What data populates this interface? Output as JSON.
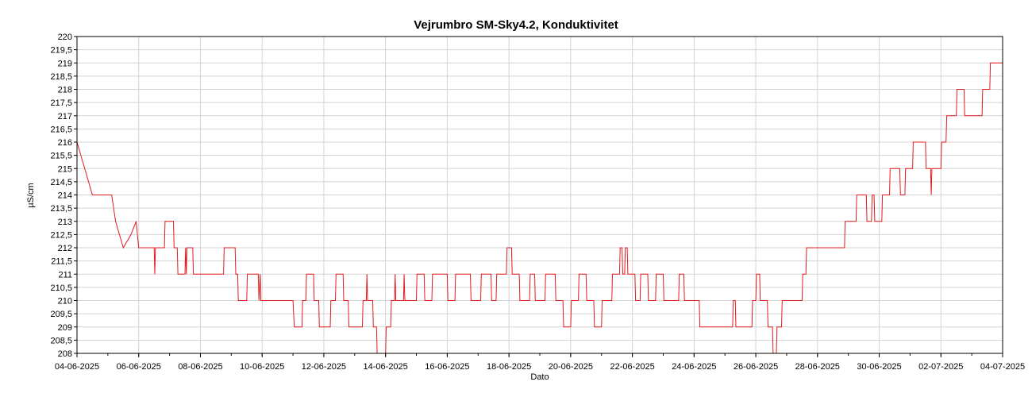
{
  "chart_data": {
    "type": "line",
    "title": "Vejrumbro SM-Sky4.2, Konduktivitet",
    "xlabel": "Dato",
    "ylabel": "µS/cm",
    "ylim": [
      208,
      220
    ],
    "xlim": [
      "04-06-2025",
      "04-07-2025"
    ],
    "grid": true,
    "x_tick_labels": [
      "04-06-2025",
      "06-06-2025",
      "08-06-2025",
      "10-06-2025",
      "12-06-2025",
      "14-06-2025",
      "16-06-2025",
      "18-06-2025",
      "20-06-2025",
      "22-06-2025",
      "24-06-2025",
      "26-06-2025",
      "28-06-2025",
      "30-06-2025",
      "02-07-2025",
      "04-07-2025"
    ],
    "y_tick_labels": [
      "208",
      "208,5",
      "209",
      "209,5",
      "210",
      "210,5",
      "211",
      "211,5",
      "212",
      "212,5",
      "213",
      "213,5",
      "214",
      "214,5",
      "215",
      "215,5",
      "216",
      "216,5",
      "217",
      "217,5",
      "218",
      "218,5",
      "219",
      "219,5",
      "220"
    ],
    "series": [
      {
        "color": "#e31a1c",
        "points": [
          [
            "04-06-2025 00:00",
            216
          ],
          [
            "04-06-2025 12:00",
            214
          ],
          [
            "05-06-2025 00:00",
            214
          ],
          [
            "05-06-2025 03:00",
            214
          ],
          [
            "05-06-2025 06:00",
            213
          ],
          [
            "05-06-2025 12:00",
            212
          ],
          [
            "05-06-2025 18:00",
            212.5
          ],
          [
            "05-06-2025 22:00",
            213
          ],
          [
            "06-06-2025 00:00",
            212
          ],
          [
            "06-06-2025 12:00",
            212
          ],
          [
            "06-06-2025 12:30",
            211
          ],
          [
            "06-06-2025 13:00",
            212
          ],
          [
            "06-06-2025 20:00",
            212
          ],
          [
            "06-06-2025 20:30",
            213
          ],
          [
            "07-06-2025 03:00",
            213
          ],
          [
            "07-06-2025 03:30",
            212
          ],
          [
            "07-06-2025 06:00",
            212
          ],
          [
            "07-06-2025 06:30",
            211
          ],
          [
            "07-06-2025 12:00",
            211
          ],
          [
            "07-06-2025 12:30",
            212
          ],
          [
            "07-06-2025 13:00",
            211
          ],
          [
            "07-06-2025 13:30",
            212
          ],
          [
            "07-06-2025 18:00",
            212
          ],
          [
            "07-06-2025 18:30",
            211
          ],
          [
            "08-06-2025 18:00",
            211
          ],
          [
            "08-06-2025 18:30",
            212
          ],
          [
            "09-06-2025 03:00",
            212
          ],
          [
            "09-06-2025 03:30",
            211
          ],
          [
            "09-06-2025 05:00",
            211
          ],
          [
            "09-06-2025 05:30",
            210
          ],
          [
            "09-06-2025 12:00",
            210
          ],
          [
            "09-06-2025 12:30",
            211
          ],
          [
            "09-06-2025 21:00",
            211
          ],
          [
            "09-06-2025 21:30",
            210
          ],
          [
            "09-06-2025 22:30",
            211
          ],
          [
            "09-06-2025 23:00",
            210
          ],
          [
            "11-06-2025 00:00",
            210
          ],
          [
            "11-06-2025 01:00",
            209
          ],
          [
            "11-06-2025 07:00",
            209
          ],
          [
            "11-06-2025 07:30",
            210
          ],
          [
            "11-06-2025 10:00",
            210
          ],
          [
            "11-06-2025 10:30",
            211
          ],
          [
            "11-06-2025 16:00",
            211
          ],
          [
            "11-06-2025 16:30",
            210
          ],
          [
            "11-06-2025 20:00",
            210
          ],
          [
            "11-06-2025 20:30",
            209
          ],
          [
            "12-06-2025 05:00",
            209
          ],
          [
            "12-06-2025 05:30",
            210
          ],
          [
            "12-06-2025 09:00",
            210
          ],
          [
            "12-06-2025 09:30",
            211
          ],
          [
            "12-06-2025 15:00",
            211
          ],
          [
            "12-06-2025 15:30",
            210
          ],
          [
            "12-06-2025 19:00",
            210
          ],
          [
            "12-06-2025 19:30",
            209
          ],
          [
            "13-06-2025 06:00",
            209
          ],
          [
            "13-06-2025 06:30",
            210
          ],
          [
            "13-06-2025 09:00",
            210
          ],
          [
            "13-06-2025 09:30",
            211
          ],
          [
            "13-06-2025 10:00",
            210
          ],
          [
            "13-06-2025 14:00",
            210
          ],
          [
            "13-06-2025 14:30",
            209
          ],
          [
            "13-06-2025 17:00",
            209
          ],
          [
            "13-06-2025 17:30",
            208
          ],
          [
            "14-06-2025 00:00",
            208
          ],
          [
            "14-06-2025 00:30",
            209
          ],
          [
            "14-06-2025 04:00",
            209
          ],
          [
            "14-06-2025 04:30",
            210
          ],
          [
            "14-06-2025 07:00",
            210
          ],
          [
            "14-06-2025 07:30",
            211
          ],
          [
            "14-06-2025 08:00",
            210
          ],
          [
            "14-06-2025 14:00",
            210
          ],
          [
            "14-06-2025 14:30",
            211
          ],
          [
            "14-06-2025 15:00",
            210
          ],
          [
            "15-06-2025 00:00",
            210
          ],
          [
            "15-06-2025 00:30",
            211
          ],
          [
            "15-06-2025 06:00",
            211
          ],
          [
            "15-06-2025 06:30",
            210
          ],
          [
            "15-06-2025 12:00",
            210
          ],
          [
            "15-06-2025 12:30",
            211
          ],
          [
            "16-06-2025 00:00",
            211
          ],
          [
            "16-06-2025 00:30",
            210
          ],
          [
            "16-06-2025 06:00",
            210
          ],
          [
            "16-06-2025 06:30",
            211
          ],
          [
            "16-06-2025 18:00",
            211
          ],
          [
            "16-06-2025 18:30",
            210
          ],
          [
            "17-06-2025 02:00",
            210
          ],
          [
            "17-06-2025 02:30",
            211
          ],
          [
            "17-06-2025 10:00",
            211
          ],
          [
            "17-06-2025 10:30",
            210
          ],
          [
            "17-06-2025 14:00",
            210
          ],
          [
            "17-06-2025 14:30",
            211
          ],
          [
            "17-06-2025 22:00",
            211
          ],
          [
            "17-06-2025 22:30",
            212
          ],
          [
            "18-06-2025 02:00",
            212
          ],
          [
            "18-06-2025 02:30",
            211
          ],
          [
            "18-06-2025 08:00",
            211
          ],
          [
            "18-06-2025 08:30",
            210
          ],
          [
            "18-06-2025 16:00",
            210
          ],
          [
            "18-06-2025 16:30",
            211
          ],
          [
            "18-06-2025 20:00",
            211
          ],
          [
            "18-06-2025 20:30",
            210
          ],
          [
            "19-06-2025 04:00",
            210
          ],
          [
            "19-06-2025 04:30",
            211
          ],
          [
            "19-06-2025 12:00",
            211
          ],
          [
            "19-06-2025 12:30",
            210
          ],
          [
            "19-06-2025 18:00",
            210
          ],
          [
            "19-06-2025 18:30",
            209
          ],
          [
            "20-06-2025 00:00",
            209
          ],
          [
            "20-06-2025 00:30",
            210
          ],
          [
            "20-06-2025 06:00",
            210
          ],
          [
            "20-06-2025 06:30",
            211
          ],
          [
            "20-06-2025 12:00",
            211
          ],
          [
            "20-06-2025 12:30",
            210
          ],
          [
            "20-06-2025 18:00",
            210
          ],
          [
            "20-06-2025 18:30",
            209
          ],
          [
            "21-06-2025 00:00",
            209
          ],
          [
            "21-06-2025 00:30",
            210
          ],
          [
            "21-06-2025 08:00",
            210
          ],
          [
            "21-06-2025 08:30",
            211
          ],
          [
            "21-06-2025 14:00",
            211
          ],
          [
            "21-06-2025 14:30",
            212
          ],
          [
            "21-06-2025 16:00",
            212
          ],
          [
            "21-06-2025 16:30",
            211
          ],
          [
            "21-06-2025 18:00",
            211
          ],
          [
            "21-06-2025 18:30",
            212
          ],
          [
            "21-06-2025 20:00",
            212
          ],
          [
            "21-06-2025 20:30",
            211
          ],
          [
            "22-06-2025 02:00",
            211
          ],
          [
            "22-06-2025 02:30",
            210
          ],
          [
            "22-06-2025 06:00",
            210
          ],
          [
            "22-06-2025 06:30",
            211
          ],
          [
            "22-06-2025 12:00",
            211
          ],
          [
            "22-06-2025 12:30",
            210
          ],
          [
            "22-06-2025 18:00",
            210
          ],
          [
            "22-06-2025 18:30",
            211
          ],
          [
            "23-06-2025 00:00",
            211
          ],
          [
            "23-06-2025 00:30",
            210
          ],
          [
            "23-06-2025 12:00",
            210
          ],
          [
            "23-06-2025 12:30",
            211
          ],
          [
            "23-06-2025 16:00",
            211
          ],
          [
            "23-06-2025 16:30",
            210
          ],
          [
            "24-06-2025 04:00",
            210
          ],
          [
            "24-06-2025 04:30",
            209
          ],
          [
            "25-06-2025 06:00",
            209
          ],
          [
            "25-06-2025 06:30",
            210
          ],
          [
            "25-06-2025 08:00",
            210
          ],
          [
            "25-06-2025 08:30",
            209
          ],
          [
            "25-06-2025 21:00",
            209
          ],
          [
            "25-06-2025 21:30",
            210
          ],
          [
            "26-06-2025 00:00",
            210
          ],
          [
            "26-06-2025 00:30",
            211
          ],
          [
            "26-06-2025 03:00",
            211
          ],
          [
            "26-06-2025 03:30",
            210
          ],
          [
            "26-06-2025 09:00",
            210
          ],
          [
            "26-06-2025 09:30",
            209
          ],
          [
            "26-06-2025 13:00",
            209
          ],
          [
            "26-06-2025 13:30",
            208
          ],
          [
            "26-06-2025 16:00",
            208
          ],
          [
            "26-06-2025 16:30",
            209
          ],
          [
            "26-06-2025 20:00",
            209
          ],
          [
            "26-06-2025 20:30",
            210
          ],
          [
            "27-06-2025 12:00",
            210
          ],
          [
            "27-06-2025 12:30",
            211
          ],
          [
            "27-06-2025 15:00",
            211
          ],
          [
            "27-06-2025 15:30",
            212
          ],
          [
            "28-06-2025 21:00",
            212
          ],
          [
            "28-06-2025 21:30",
            213
          ],
          [
            "29-06-2025 06:00",
            213
          ],
          [
            "29-06-2025 06:30",
            214
          ],
          [
            "29-06-2025 14:00",
            214
          ],
          [
            "29-06-2025 14:30",
            213
          ],
          [
            "29-06-2025 18:00",
            213
          ],
          [
            "29-06-2025 18:30",
            214
          ],
          [
            "29-06-2025 20:00",
            214
          ],
          [
            "29-06-2025 20:30",
            213
          ],
          [
            "30-06-2025 02:00",
            213
          ],
          [
            "30-06-2025 02:30",
            214
          ],
          [
            "30-06-2025 08:00",
            214
          ],
          [
            "30-06-2025 08:30",
            215
          ],
          [
            "30-06-2025 16:00",
            215
          ],
          [
            "30-06-2025 16:30",
            214
          ],
          [
            "30-06-2025 20:00",
            214
          ],
          [
            "30-06-2025 20:30",
            215
          ],
          [
            "01-07-2025 02:00",
            215
          ],
          [
            "01-07-2025 02:30",
            216
          ],
          [
            "01-07-2025 12:00",
            216
          ],
          [
            "01-07-2025 12:30",
            215
          ],
          [
            "01-07-2025 16:00",
            215
          ],
          [
            "01-07-2025 16:30",
            214
          ],
          [
            "01-07-2025 17:00",
            215
          ],
          [
            "02-07-2025 00:00",
            215
          ],
          [
            "02-07-2025 00:30",
            216
          ],
          [
            "02-07-2025 04:00",
            216
          ],
          [
            "02-07-2025 04:30",
            217
          ],
          [
            "02-07-2025 12:00",
            217
          ],
          [
            "02-07-2025 12:30",
            218
          ],
          [
            "02-07-2025 18:00",
            218
          ],
          [
            "02-07-2025 18:30",
            217
          ],
          [
            "03-07-2025 08:00",
            217
          ],
          [
            "03-07-2025 08:30",
            218
          ],
          [
            "03-07-2025 14:00",
            218
          ],
          [
            "03-07-2025 14:30",
            219
          ],
          [
            "04-07-2025 00:00",
            219
          ],
          [
            "04-07-2025 00:30",
            220
          ]
        ]
      }
    ]
  }
}
